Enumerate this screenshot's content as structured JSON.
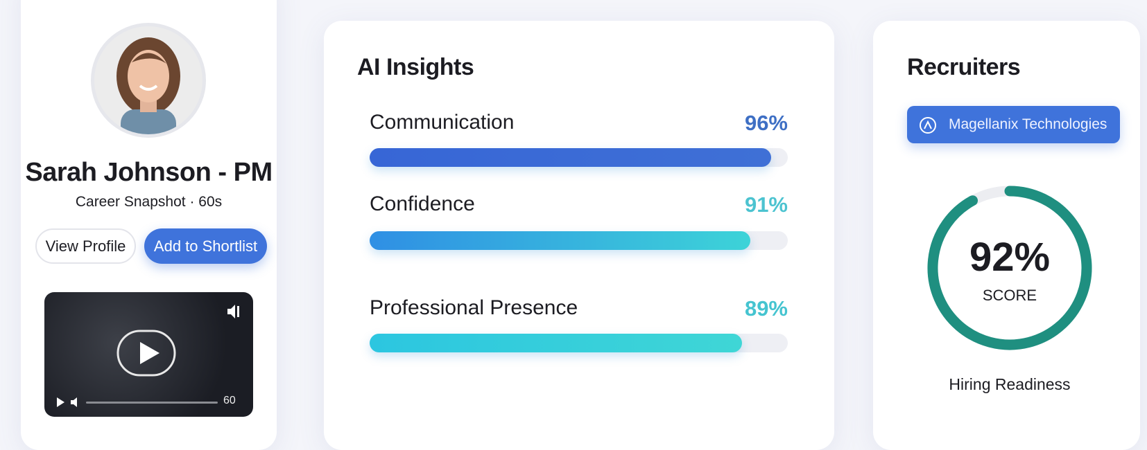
{
  "profile": {
    "name": "Sarah Johnson - PM",
    "subtitle": "Career Snapshot · 60s",
    "buttons": [
      "View Profile",
      "Add to Shortlist"
    ],
    "video_duration": "60"
  },
  "insights": {
    "title": "AI Insights",
    "items": [
      {
        "label": "Communication",
        "value": 96,
        "value_label": "96%"
      },
      {
        "label": "Confidence",
        "value": 91,
        "value_label": "91%"
      },
      {
        "label": "Professional Presence",
        "value": 89,
        "value_label": "89%"
      }
    ]
  },
  "recruiters": {
    "title": "Recruiters",
    "company": "Magellanix Technologies",
    "score": {
      "value": 92,
      "value_label": "92%",
      "caption": "SCORE"
    },
    "footer": "Hiring Readiness"
  }
}
